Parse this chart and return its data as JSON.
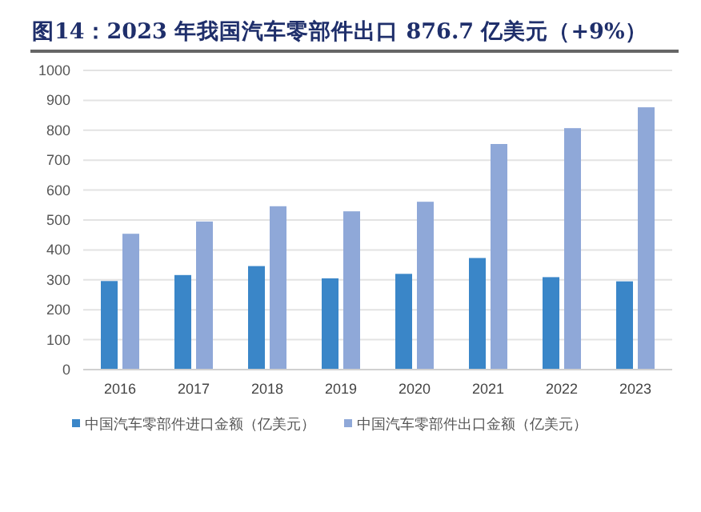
{
  "chart_data": {
    "type": "bar",
    "title": "图14：2023 年我国汽车零部件出口 876.7 亿美元（+9%）",
    "categories": [
      "2016",
      "2017",
      "2018",
      "2019",
      "2020",
      "2021",
      "2022",
      "2023"
    ],
    "series": [
      {
        "name": "中国汽车零部件进口金额（亿美元）",
        "color": "#3a86c8",
        "values": [
          296,
          316,
          346,
          305,
          320,
          373,
          309,
          295
        ]
      },
      {
        "name": "中国汽车零部件出口金额（亿美元）",
        "color": "#8fa8d8",
        "values": [
          454,
          495,
          546,
          529,
          561,
          754,
          807,
          876.7
        ]
      }
    ],
    "ylim": [
      0,
      1000
    ],
    "yticks": [
      0,
      100,
      200,
      300,
      400,
      500,
      600,
      700,
      800,
      900,
      1000
    ],
    "grid": "y",
    "legend": "bottom"
  }
}
